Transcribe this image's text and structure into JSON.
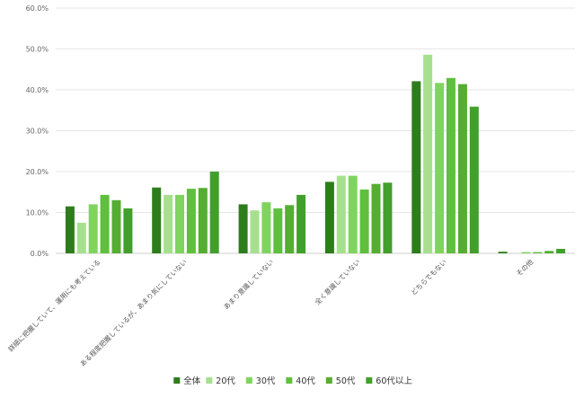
{
  "chart_data": {
    "type": "bar",
    "categories": [
      "詳細に把握していて、運用にも考えている",
      "ある程度把握しているが、あまり気にしていない",
      "あまり意識していない",
      "全く意識していない",
      "どちらでもない",
      "その他"
    ],
    "series": [
      {
        "name": "全体",
        "color": "#2e7d1c",
        "values": [
          11.5,
          16.1,
          12.0,
          17.5,
          42.1,
          0.4
        ]
      },
      {
        "name": "20代",
        "color": "#a6e08e",
        "values": [
          7.5,
          14.3,
          10.5,
          19.0,
          48.6,
          0.0
        ]
      },
      {
        "name": "30代",
        "color": "#7fd45e",
        "values": [
          12.0,
          14.3,
          12.5,
          19.0,
          41.7,
          0.3
        ]
      },
      {
        "name": "40代",
        "color": "#5ec03d",
        "values": [
          14.3,
          15.8,
          11.0,
          15.6,
          42.9,
          0.3
        ]
      },
      {
        "name": "50代",
        "color": "#55ad32",
        "values": [
          13.0,
          16.0,
          11.8,
          17.0,
          41.4,
          0.6
        ]
      },
      {
        "name": "60代以上",
        "color": "#41a02c",
        "values": [
          11.0,
          20.0,
          14.3,
          17.3,
          35.9,
          1.1
        ]
      }
    ],
    "y_ticks": [
      "0.0%",
      "10.0%",
      "20.0%",
      "30.0%",
      "40.0%",
      "50.0%",
      "60.0%"
    ],
    "ylim": [
      0,
      60
    ],
    "grid": true,
    "legend_position": "bottom"
  }
}
